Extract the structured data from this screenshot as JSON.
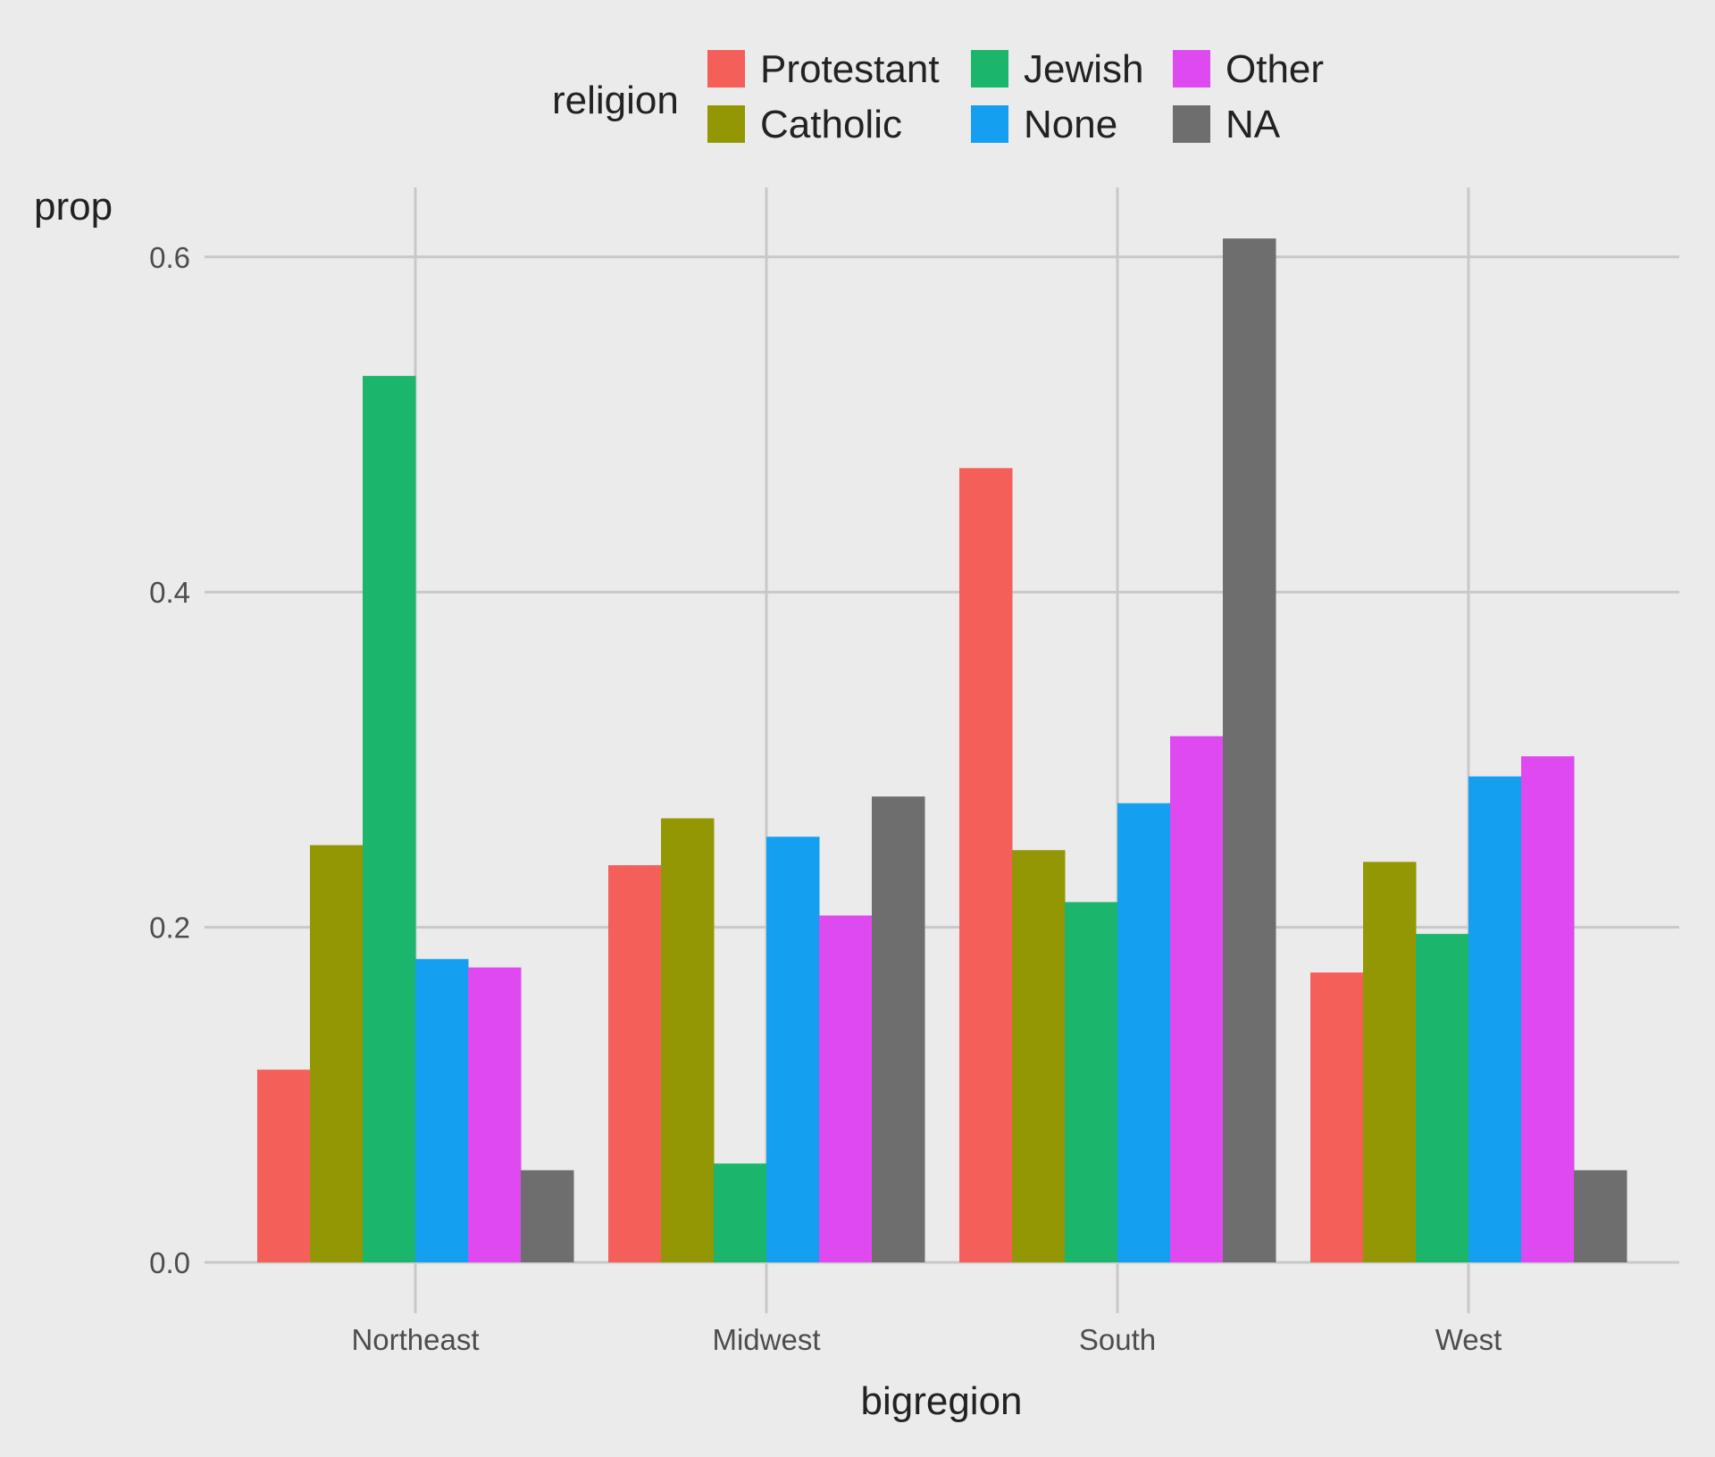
{
  "chart_data": {
    "type": "bar",
    "layout": "dodge",
    "title": "",
    "xlabel": "bigregion",
    "ylabel": "prop",
    "ylim": [
      0,
      0.64
    ],
    "yticks": [
      0.0,
      0.2,
      0.4,
      0.6
    ],
    "ytick_labels": [
      "0.0",
      "0.2",
      "0.4",
      "0.6"
    ],
    "grid": true,
    "categories": [
      "Northeast",
      "Midwest",
      "South",
      "West"
    ],
    "legend": {
      "title": "religion",
      "placement": "top"
    },
    "series": [
      {
        "name": "Protestant",
        "color": "#F45F5A",
        "values": [
          0.115,
          0.237,
          0.474,
          0.173
        ]
      },
      {
        "name": "Catholic",
        "color": "#939704",
        "values": [
          0.249,
          0.265,
          0.246,
          0.239
        ]
      },
      {
        "name": "Jewish",
        "color": "#1BB66B",
        "values": [
          0.529,
          0.059,
          0.215,
          0.196
        ]
      },
      {
        "name": "None",
        "color": "#159FF1",
        "values": [
          0.181,
          0.254,
          0.274,
          0.29
        ]
      },
      {
        "name": "Other",
        "color": "#DE4AF0",
        "values": [
          0.176,
          0.207,
          0.314,
          0.302
        ]
      },
      {
        "name": "NA",
        "color": "#6E6E6E",
        "values": [
          0.055,
          0.278,
          0.611,
          0.055
        ]
      }
    ]
  }
}
